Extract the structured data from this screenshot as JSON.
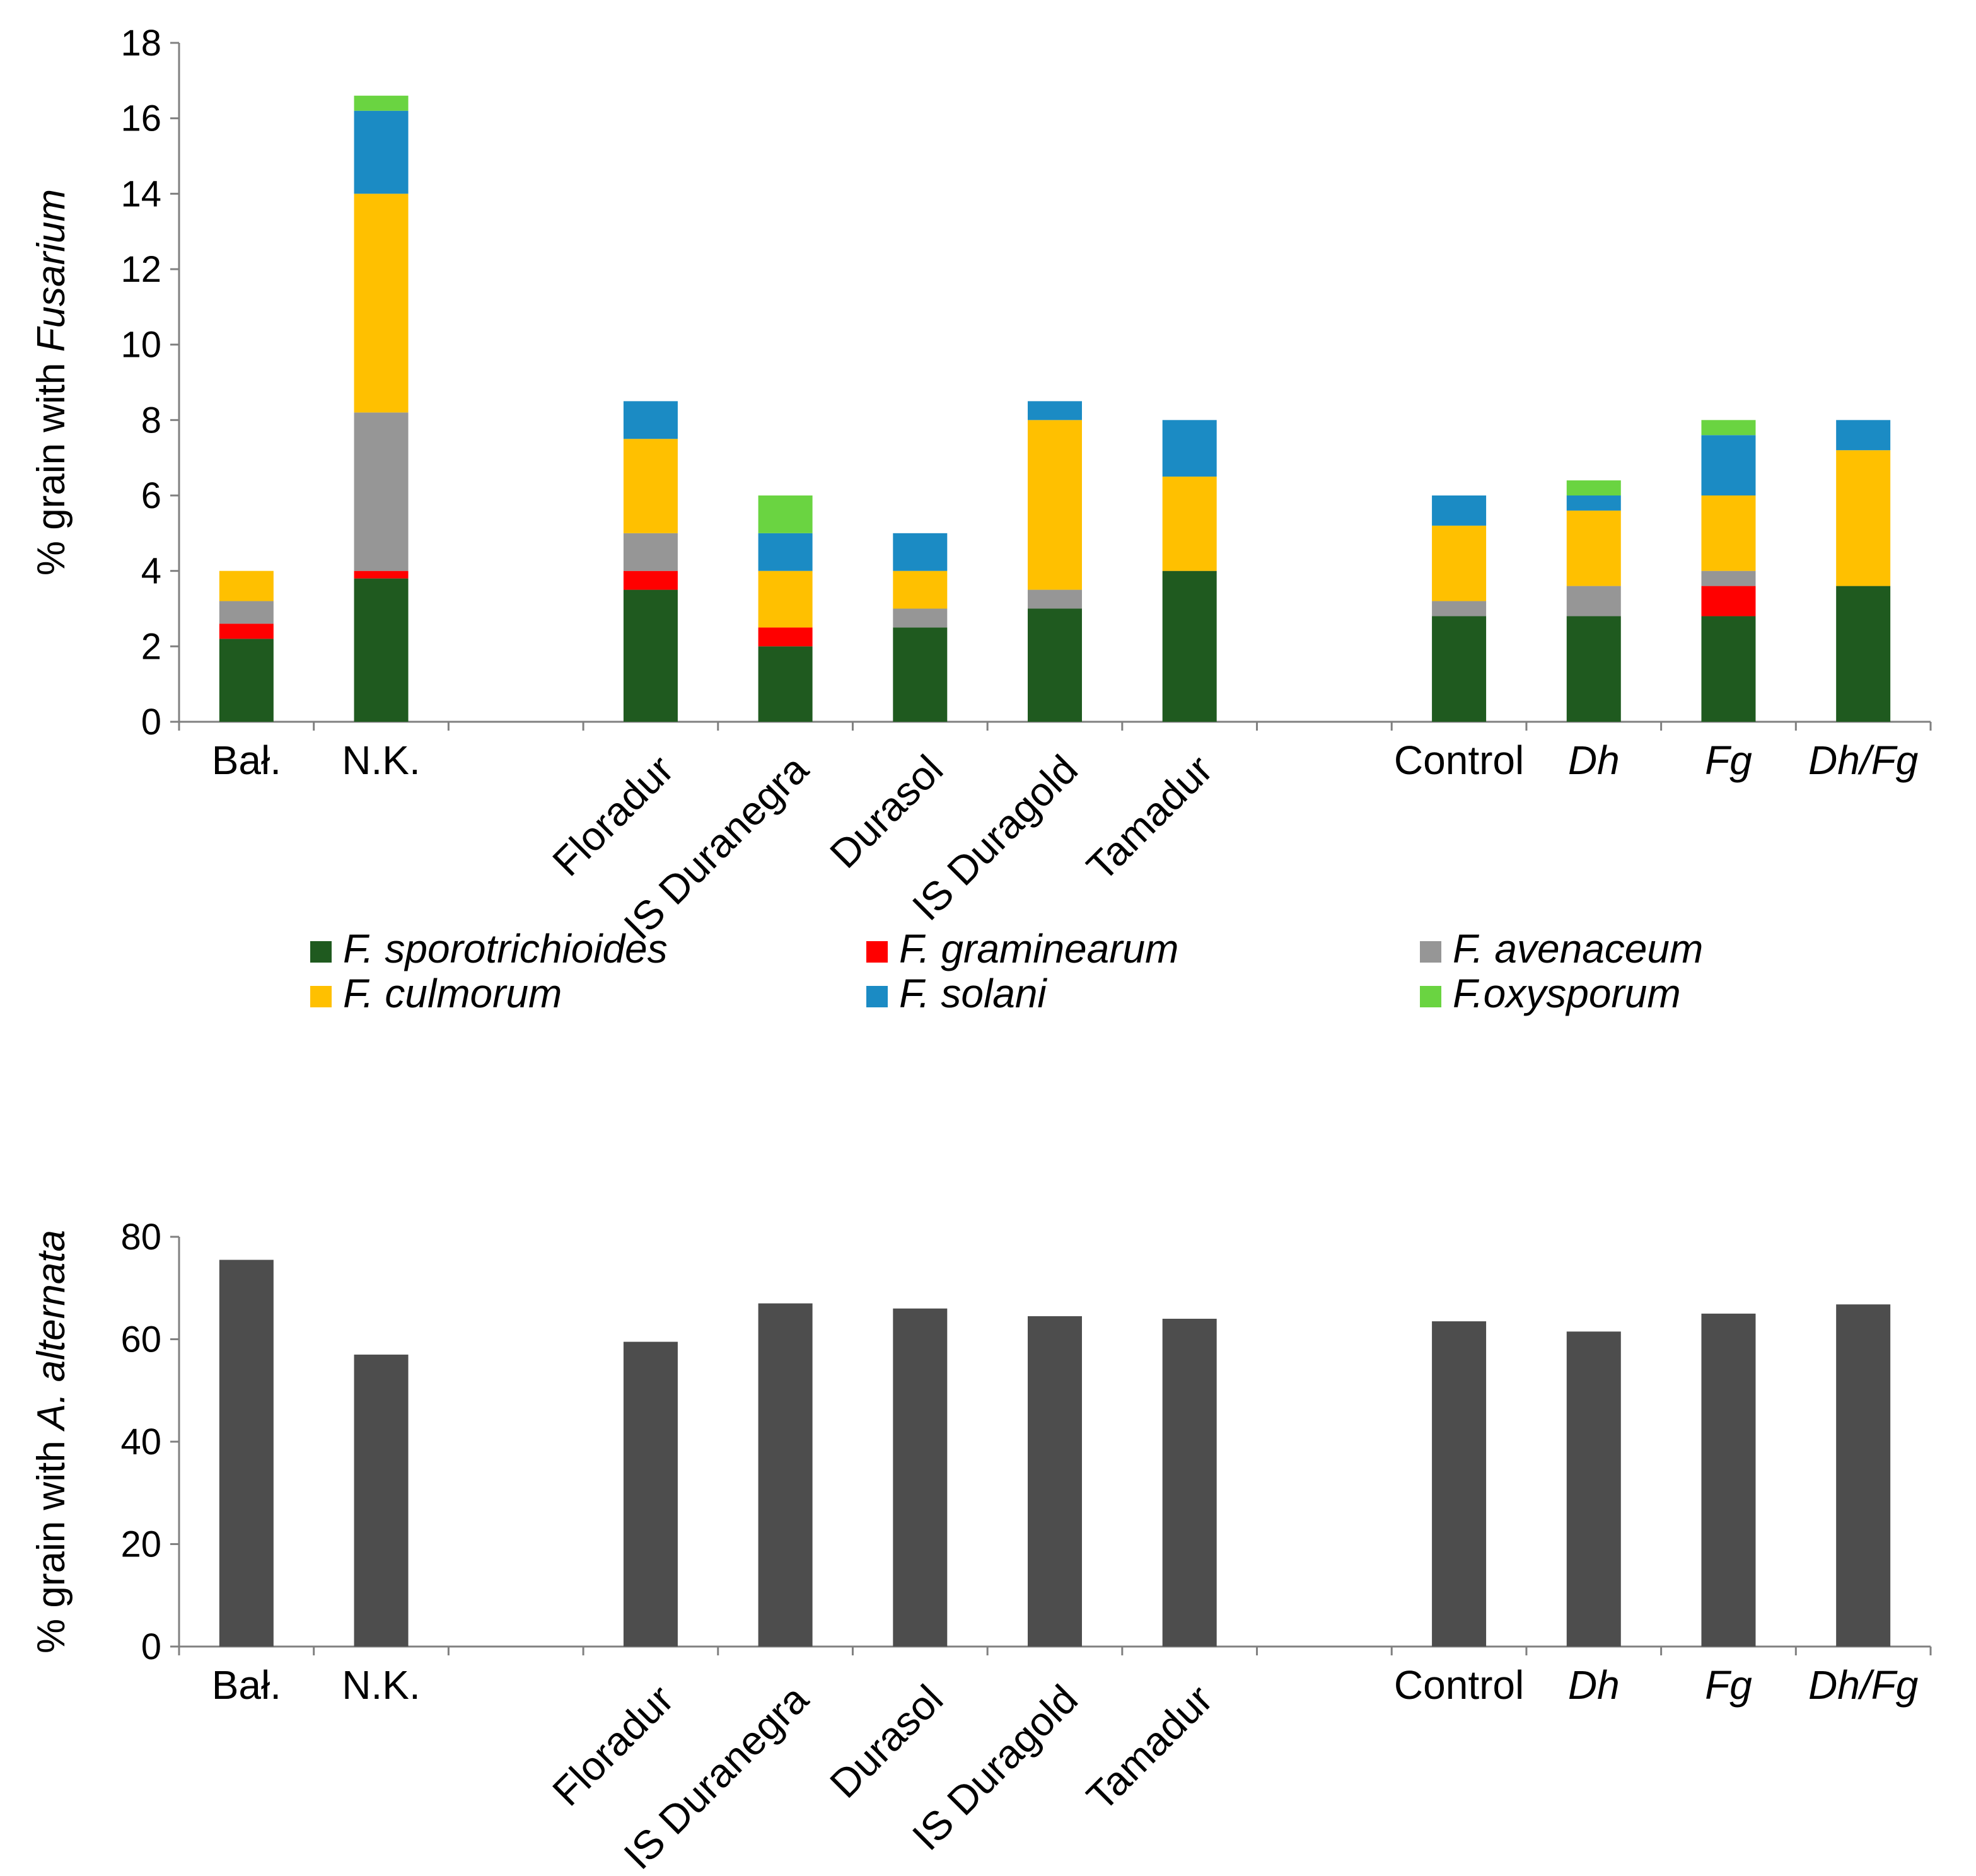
{
  "chart_data": [
    {
      "type": "bar",
      "stacked": true,
      "title": "",
      "ylabel_prefix": "% grain with ",
      "ylabel_italic": "Fusarium",
      "xlabel": "",
      "ylim": [
        0,
        18
      ],
      "yticks": [
        0,
        2,
        4,
        6,
        8,
        10,
        12,
        14,
        16,
        18
      ],
      "grid": false,
      "legend_position": "bottom",
      "slots": [
        "Bał.",
        "N.K.",
        "",
        "Floradur",
        "IS Duranegra",
        "Durasol",
        "IS Duragold",
        "Tamadur",
        "",
        "Control",
        "Dh",
        "Fg",
        "Dh/Fg"
      ],
      "rotated_labels": [
        "Floradur",
        "IS Duranegra",
        "Durasol",
        "IS Duragold",
        "Tamadur"
      ],
      "italic_labels": [
        "Dh",
        "Fg",
        "Dh/Fg"
      ],
      "series": [
        {
          "name": "F. sporotrichioides",
          "color": "#1f5a1f",
          "values": [
            2.2,
            3.8,
            null,
            3.5,
            2.0,
            2.5,
            3.0,
            4.0,
            null,
            2.8,
            2.8,
            2.8,
            3.6
          ]
        },
        {
          "name": "F. graminearum",
          "color": "#ff0000",
          "values": [
            0.4,
            0.2,
            null,
            0.5,
            0.5,
            0,
            0,
            0,
            null,
            0,
            0,
            0.8,
            0
          ]
        },
        {
          "name": "F. avenaceum",
          "color": "#969696",
          "values": [
            0.6,
            4.2,
            null,
            1.0,
            0,
            0.5,
            0.5,
            0,
            null,
            0.4,
            0.8,
            0.4,
            0
          ]
        },
        {
          "name": "F. culmorum",
          "color": "#ffc000",
          "values": [
            0.8,
            5.8,
            null,
            2.5,
            1.5,
            1.0,
            4.5,
            2.5,
            null,
            2.0,
            2.0,
            2.0,
            3.6
          ]
        },
        {
          "name": "F. solani",
          "color": "#1b8bc4",
          "values": [
            0,
            2.2,
            null,
            1.0,
            1.0,
            1.0,
            0.5,
            1.5,
            null,
            0.8,
            0.4,
            1.6,
            0.8
          ]
        },
        {
          "name": "F.oxysporum",
          "color": "#6ad441",
          "values": [
            0,
            0.4,
            null,
            0,
            1.0,
            0,
            0,
            0,
            null,
            0,
            0.4,
            0.4,
            0
          ]
        }
      ]
    },
    {
      "type": "bar",
      "title": "",
      "ylabel_prefix": "% grain with ",
      "ylabel_italic": "A. alternata",
      "xlabel": "",
      "ylim": [
        0,
        80
      ],
      "yticks": [
        0,
        20,
        40,
        60,
        80
      ],
      "grid": false,
      "slots": [
        "Bał.",
        "N.K.",
        "",
        "Floradur",
        "IS Duranegra",
        "Durasol",
        "IS Duragold",
        "Tamadur",
        "",
        "Control",
        "Dh",
        "Fg",
        "Dh/Fg"
      ],
      "rotated_labels": [
        "Floradur",
        "IS Duranegra",
        "Durasol",
        "IS Duragold",
        "Tamadur"
      ],
      "italic_labels": [
        "Dh",
        "Fg",
        "Dh/Fg"
      ],
      "series": [
        {
          "name": "A. alternata",
          "color": "#4d4d4d",
          "values": [
            75.5,
            57.0,
            null,
            59.5,
            67.0,
            66.0,
            64.5,
            64.0,
            null,
            63.5,
            61.5,
            65.0,
            66.8
          ]
        }
      ]
    }
  ]
}
